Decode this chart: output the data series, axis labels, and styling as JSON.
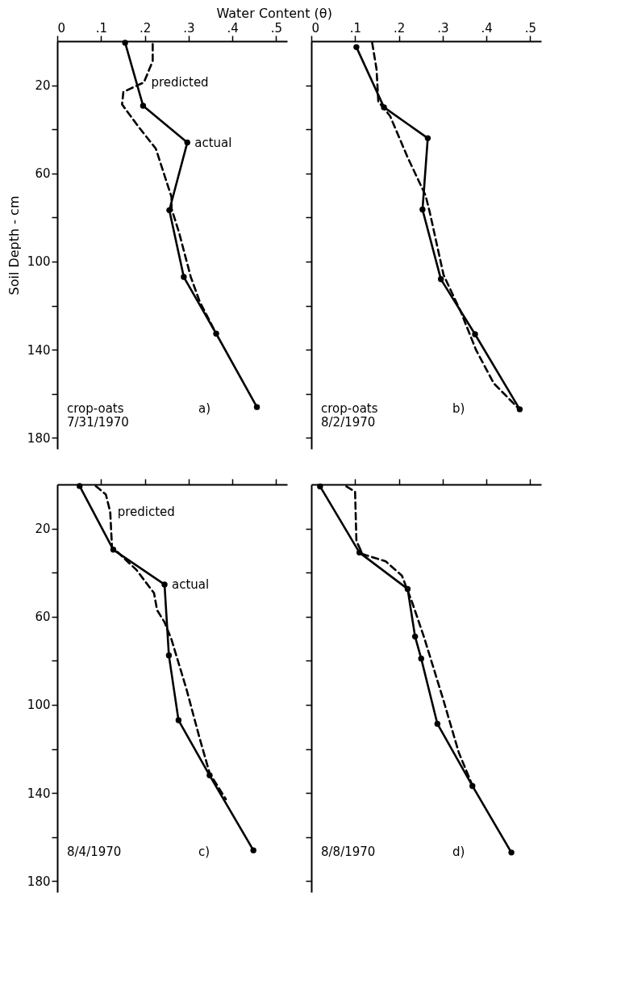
{
  "chart_data": [
    {
      "type": "line",
      "xlabel": "Water Content (θ)",
      "ylabel": "Soil Depth - cm",
      "xlim": [
        0,
        0.525
      ],
      "ylim": [
        185,
        0
      ],
      "xticks": [
        0,
        {
          "value": 0.1,
          "label": ".1"
        },
        {
          "value": 0.2,
          "label": ".2"
        },
        {
          "value": 0.3,
          "label": ".3"
        },
        {
          "value": 0.4,
          "label": ".4"
        },
        {
          "value": 0.5,
          "label": ".5"
        }
      ],
      "yticks": [
        20,
        {
          "value": 40,
          "label": null
        },
        60,
        {
          "value": 80,
          "label": null
        },
        100,
        {
          "value": 120,
          "label": null
        },
        140,
        {
          "value": 160,
          "label": null
        },
        180
      ],
      "series": [
        {
          "name": "actual",
          "color": "#000000",
          "marker": "circle",
          "line_style": "solid",
          "x": [
            0.155,
            0.196,
            0.297,
            0.256,
            0.289,
            0.363,
            0.456
          ],
          "values": [
            0.7,
            29.3,
            46,
            76.7,
            107,
            132.7,
            166
          ]
        },
        {
          "name": "predicted",
          "color": "#000000",
          "line_style": "dashed",
          "x": [
            0.218,
            0.218,
            0.198,
            0.151,
            0.148,
            0.185,
            0.225,
            0.261,
            0.261,
            0.278,
            0.305,
            0.325,
            0.363
          ],
          "values": [
            1.3,
            9,
            18.7,
            23,
            28.7,
            38.7,
            48.7,
            70.7,
            76,
            86.7,
            107,
            118,
            132.7
          ]
        }
      ],
      "annotations": [
        "crop-oats\n7/31/1970",
        "a)"
      ]
    },
    {
      "type": "line",
      "xlim": [
        0,
        0.525
      ],
      "ylim": [
        185,
        0
      ],
      "tick_labels": "x",
      "xticks": [
        0,
        {
          "value": 0.1,
          "label": ".1"
        },
        {
          "value": 0.2,
          "label": ".2"
        },
        {
          "value": 0.3,
          "label": ".3"
        },
        {
          "value": 0.4,
          "label": ".4"
        },
        {
          "value": 0.5,
          "label": ".5"
        }
      ],
      "yticks": [
        {
          "value": 20,
          "label": null
        },
        {
          "value": 40,
          "label": null
        },
        {
          "value": 60,
          "label": null
        },
        {
          "value": 80,
          "label": null
        },
        {
          "value": 100,
          "label": null
        },
        {
          "value": 120,
          "label": null
        },
        {
          "value": 140,
          "label": null
        },
        {
          "value": 160,
          "label": null
        },
        {
          "value": 180,
          "label": null
        }
      ],
      "series": [
        {
          "color": "#000000",
          "marker": "circle",
          "line_style": "solid",
          "x": [
            0.103,
            0.166,
            0.266,
            0.254,
            0.296,
            0.374,
            0.476
          ],
          "values": [
            2.7,
            30,
            44,
            76.4,
            108,
            133,
            167
          ]
        },
        {
          "color": "#000000",
          "line_style": "dashed",
          "x": [
            0.139,
            0.149,
            0.153,
            0.18,
            0.22,
            0.261,
            0.271,
            0.302,
            0.342,
            0.376,
            0.417,
            0.475
          ],
          "values": [
            0.7,
            12.7,
            27.3,
            34,
            52.7,
            70,
            78,
            106,
            123,
            140,
            155.3,
            167
          ]
        }
      ],
      "annotations": [
        "crop-oats\n8/2/1970",
        "b)"
      ]
    },
    {
      "type": "line",
      "xlim": [
        0,
        0.525
      ],
      "ylim": [
        185,
        0
      ],
      "tick_labels": "y",
      "xticks": [
        {
          "value": 0.1,
          "label": null
        },
        {
          "value": 0.2,
          "label": null
        },
        {
          "value": 0.3,
          "label": null
        },
        {
          "value": 0.4,
          "label": null
        },
        {
          "value": 0.5,
          "label": null
        }
      ],
      "yticks": [
        20,
        {
          "value": 40,
          "label": null
        },
        60,
        {
          "value": 80,
          "label": null
        },
        100,
        {
          "value": 120,
          "label": null
        },
        140,
        {
          "value": 160,
          "label": null
        },
        180
      ],
      "series": [
        {
          "name": "actual",
          "color": "#000000",
          "marker": "circle",
          "line_style": "solid",
          "x": [
            0.051,
            0.128,
            0.245,
            0.255,
            0.277,
            0.348,
            0.448
          ],
          "values": [
            0.7,
            29.6,
            45.4,
            77.6,
            107,
            132,
            166
          ]
        },
        {
          "name": "predicted",
          "color": "#000000",
          "line_style": "dashed",
          "x": [
            0.088,
            0.111,
            0.121,
            0.125,
            0.181,
            0.221,
            0.228,
            0.245,
            0.261,
            0.295,
            0.325,
            0.348,
            0.385
          ],
          "values": [
            0.7,
            4.6,
            12.5,
            28.3,
            38.8,
            49.3,
            57,
            62.5,
            70.4,
            92.8,
            115,
            131,
            142.8
          ]
        }
      ],
      "annotations": [
        "8/4/1970",
        "c)"
      ]
    },
    {
      "type": "line",
      "xlim": [
        0,
        0.525
      ],
      "ylim": [
        185,
        0
      ],
      "tick_labels": false,
      "xticks": [
        {
          "value": 0.1,
          "label": null
        },
        {
          "value": 0.2,
          "label": null
        },
        {
          "value": 0.3,
          "label": null
        },
        {
          "value": 0.4,
          "label": null
        },
        {
          "value": 0.5,
          "label": null
        }
      ],
      "yticks": [
        {
          "value": 20,
          "label": null
        },
        {
          "value": 40,
          "label": null
        },
        {
          "value": 60,
          "label": null
        },
        {
          "value": 80,
          "label": null
        },
        {
          "value": 100,
          "label": null
        },
        {
          "value": 120,
          "label": null
        },
        {
          "value": 140,
          "label": null
        },
        {
          "value": 160,
          "label": null
        },
        {
          "value": 180,
          "label": null
        }
      ],
      "series": [
        {
          "color": "#000000",
          "marker": "circle",
          "line_style": "solid",
          "x": [
            0.02,
            0.11,
            0.22,
            0.237,
            0.251,
            0.288,
            0.368,
            0.457
          ],
          "values": [
            0.9,
            30.9,
            47.4,
            69,
            79,
            108.6,
            136.8,
            167
          ]
        },
        {
          "color": "#000000",
          "line_style": "dashed",
          "x": [
            0.08,
            0.1,
            0.103,
            0.117,
            0.17,
            0.207,
            0.23,
            0.257,
            0.3,
            0.337,
            0.37
          ],
          "values": [
            0.9,
            3.3,
            25.7,
            31.6,
            34.9,
            41.4,
            53.3,
            69,
            96.7,
            121.7,
            137.5
          ]
        }
      ],
      "annotations": [
        "8/8/1970",
        "d)"
      ]
    }
  ]
}
